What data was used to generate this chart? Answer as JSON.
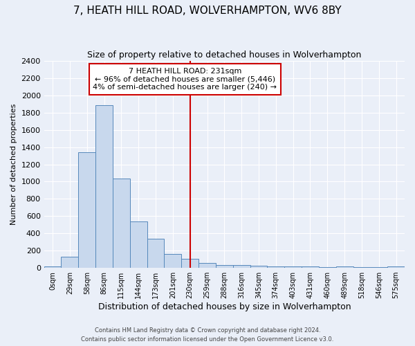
{
  "title": "7, HEATH HILL ROAD, WOLVERHAMPTON, WV6 8BY",
  "subtitle": "Size of property relative to detached houses in Wolverhampton",
  "xlabel": "Distribution of detached houses by size in Wolverhampton",
  "ylabel": "Number of detached properties",
  "bar_color": "#c8d8ed",
  "bar_edge_color": "#5588bb",
  "background_color": "#eaeff8",
  "grid_color": "#ffffff",
  "vline_color": "#cc0000",
  "annotation_title": "7 HEATH HILL ROAD: 231sqm",
  "annotation_line1": "← 96% of detached houses are smaller (5,446)",
  "annotation_line2": "4% of semi-detached houses are larger (240) →",
  "annotation_box_color": "#ffffff",
  "annotation_box_edge": "#cc0000",
  "categories": [
    "0sqm",
    "29sqm",
    "58sqm",
    "86sqm",
    "115sqm",
    "144sqm",
    "173sqm",
    "201sqm",
    "230sqm",
    "259sqm",
    "288sqm",
    "316sqm",
    "345sqm",
    "374sqm",
    "403sqm",
    "431sqm",
    "460sqm",
    "489sqm",
    "518sqm",
    "546sqm",
    "575sqm"
  ],
  "values": [
    20,
    130,
    1340,
    1890,
    1040,
    540,
    340,
    165,
    105,
    55,
    35,
    30,
    25,
    20,
    20,
    20,
    5,
    20,
    5,
    5,
    20
  ],
  "ylim": [
    0,
    2400
  ],
  "yticks": [
    0,
    200,
    400,
    600,
    800,
    1000,
    1200,
    1400,
    1600,
    1800,
    2000,
    2200,
    2400
  ],
  "vline_idx": 8,
  "footer1": "Contains HM Land Registry data © Crown copyright and database right 2024.",
  "footer2": "Contains public sector information licensed under the Open Government Licence v3.0."
}
